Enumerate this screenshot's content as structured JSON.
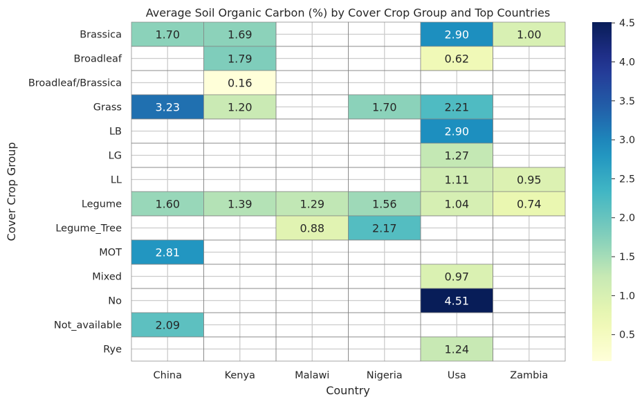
{
  "chart_data": {
    "type": "heatmap",
    "title": "Average Soil Organic Carbon (%) by Cover Crop Group and Top Countries",
    "xlabel": "Country",
    "ylabel": "Cover Crop Group",
    "columns": [
      "China",
      "Kenya",
      "Malawi",
      "Nigeria",
      "Usa",
      "Zambia"
    ],
    "rows": [
      "Brassica",
      "Broadleaf",
      "Broadleaf/Brassica",
      "Grass",
      "LB",
      "LG",
      "LL",
      "Legume",
      "Legume_Tree",
      "MOT",
      "Mixed",
      "No",
      "Not_available",
      "Rye"
    ],
    "values": [
      [
        1.7,
        1.69,
        null,
        null,
        2.9,
        1.0
      ],
      [
        null,
        1.79,
        null,
        null,
        0.62,
        null
      ],
      [
        null,
        0.16,
        null,
        null,
        null,
        null
      ],
      [
        3.23,
        1.2,
        null,
        1.7,
        2.21,
        null
      ],
      [
        null,
        null,
        null,
        null,
        2.9,
        null
      ],
      [
        null,
        null,
        null,
        null,
        1.27,
        null
      ],
      [
        null,
        null,
        null,
        null,
        1.11,
        0.95
      ],
      [
        1.6,
        1.39,
        1.29,
        1.56,
        1.04,
        0.74
      ],
      [
        null,
        null,
        0.88,
        2.17,
        null,
        null
      ],
      [
        2.81,
        null,
        null,
        null,
        null,
        null
      ],
      [
        null,
        null,
        null,
        null,
        0.97,
        null
      ],
      [
        null,
        null,
        null,
        null,
        4.51,
        null
      ],
      [
        2.09,
        null,
        null,
        null,
        null,
        null
      ],
      [
        null,
        null,
        null,
        null,
        1.24,
        null
      ]
    ],
    "colormap": "YlGnBu",
    "vmin": 0.16,
    "vmax": 4.51,
    "colorbar_ticks": [
      "0.5",
      "1.0",
      "1.5",
      "2.0",
      "2.5",
      "3.0",
      "3.5",
      "4.0",
      "4.5"
    ],
    "grid": true
  }
}
